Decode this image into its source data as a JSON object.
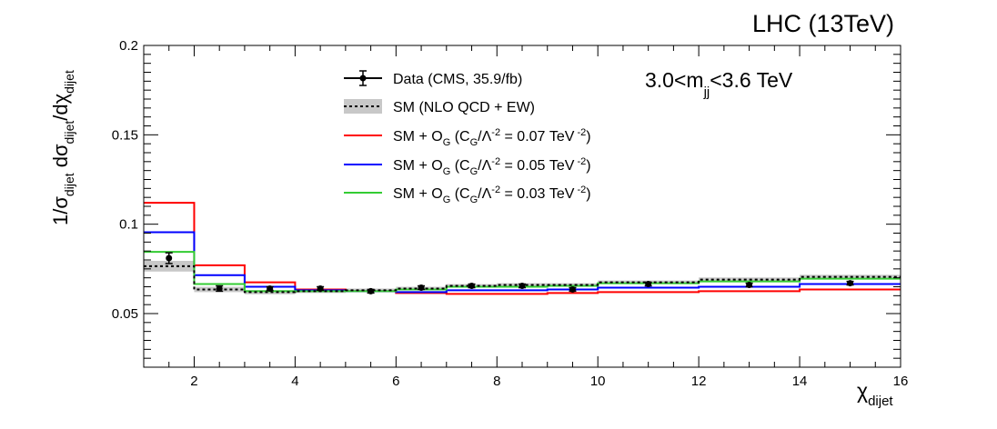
{
  "chart_data": {
    "type": "line",
    "title": "LHC (13TeV)",
    "annotation": {
      "main": "3.0<m",
      "sub": "jj",
      "tail": "<3.6 TeV"
    },
    "xlabel": {
      "main": "χ",
      "sub": "dijet"
    },
    "ylabel": {
      "p1": "1/σ",
      "s1": "dijet",
      "p2": " dσ",
      "s2": "dijet",
      "p3": "/dχ",
      "s3": "dijet"
    },
    "xlim": [
      1,
      16
    ],
    "ylim": [
      0.02,
      0.2
    ],
    "xticks": [
      2,
      4,
      6,
      8,
      10,
      12,
      14,
      16
    ],
    "yticks": [
      0.05,
      0.1,
      0.15,
      0.2
    ],
    "ytick_labels": [
      "0.05",
      "0.1",
      "0.15",
      "0.2"
    ],
    "bin_edges": [
      1,
      2,
      3,
      4,
      5,
      6,
      7,
      8,
      9,
      10,
      12,
      14,
      16
    ],
    "data": {
      "name": "Data (CMS, 35.9/fb)",
      "x": [
        1.5,
        2.5,
        3.5,
        4.5,
        5.5,
        6.5,
        7.5,
        8.5,
        9.5,
        11,
        13,
        15
      ],
      "y": [
        0.081,
        0.064,
        0.064,
        0.064,
        0.0625,
        0.0645,
        0.0655,
        0.0655,
        0.0635,
        0.0665,
        0.066,
        0.067
      ],
      "err": [
        0.003,
        0.0015,
        0.001,
        0.001,
        0.001,
        0.001,
        0.001,
        0.001,
        0.001,
        0.001,
        0.001,
        0.001
      ]
    },
    "series": [
      {
        "name": "SM (NLO QCD + EW)",
        "color": "#000000",
        "style": "dotted-with-band",
        "band_color": "#c8c8c8",
        "values": [
          0.0765,
          0.0635,
          0.062,
          0.0625,
          0.063,
          0.064,
          0.0655,
          0.066,
          0.066,
          0.0675,
          0.069,
          0.0705
        ],
        "band": [
          0.003,
          0.0015,
          0.0012,
          0.001,
          0.001,
          0.001,
          0.001,
          0.001,
          0.001,
          0.001,
          0.0012,
          0.0012
        ]
      },
      {
        "name": "SM + O",
        "name_sub": "G",
        "name_tail": " (C",
        "name_sub2": "G",
        "name_tail2": "/Λ",
        "name_sup": "-2",
        "name_tail3": " = 0.07 TeV",
        "name_sup2": " -2",
        "name_end": ")",
        "color": "#ff0000",
        "values": [
          0.112,
          0.077,
          0.0675,
          0.0635,
          0.0625,
          0.0615,
          0.061,
          0.061,
          0.0615,
          0.062,
          0.0625,
          0.0635
        ]
      },
      {
        "name": "SM + O",
        "name_sub": "G",
        "name_tail": " (C",
        "name_sub2": "G",
        "name_tail2": "/Λ",
        "name_sup": "-2",
        "name_tail3": " = 0.05 TeV",
        "name_sup2": " -2",
        "name_end": ")",
        "color": "#0000ff",
        "values": [
          0.0955,
          0.0715,
          0.065,
          0.063,
          0.0625,
          0.062,
          0.063,
          0.063,
          0.0635,
          0.0645,
          0.065,
          0.0665
        ]
      },
      {
        "name": "SM + O",
        "name_sub": "G",
        "name_tail": " (C",
        "name_sub2": "G",
        "name_tail2": "/Λ",
        "name_sup": "-2",
        "name_tail3": " = 0.03 TeV",
        "name_sup2": " -2",
        "name_end": ")",
        "color": "#33cc33",
        "values": [
          0.0845,
          0.0665,
          0.0625,
          0.0625,
          0.0625,
          0.0635,
          0.065,
          0.065,
          0.0655,
          0.067,
          0.068,
          0.0695
        ]
      }
    ]
  }
}
